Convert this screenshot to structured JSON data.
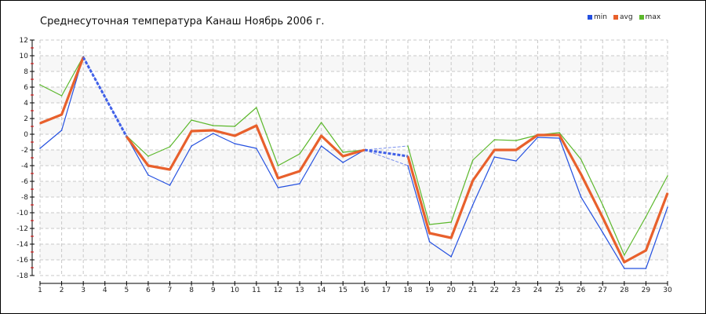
{
  "chart_data": {
    "type": "line",
    "title": "Среднесуточная температура Канаш  Ноябрь 2006 г.",
    "xlabel": "",
    "ylabel": "",
    "x": [
      1,
      2,
      3,
      4,
      5,
      6,
      7,
      8,
      9,
      10,
      11,
      12,
      13,
      14,
      15,
      16,
      17,
      18,
      19,
      20,
      21,
      22,
      23,
      24,
      25,
      26,
      27,
      28,
      29,
      30
    ],
    "xlim": [
      1,
      30
    ],
    "ylim": [
      -18,
      12
    ],
    "yticks": [
      12,
      10,
      8,
      6,
      4,
      2,
      0,
      -2,
      -4,
      -6,
      -8,
      -10,
      -12,
      -14,
      -16,
      -18
    ],
    "grid": true,
    "legend_position": "top-right",
    "series": [
      {
        "name": "min",
        "color": "#2450e0",
        "values": [
          -1.8,
          0.5,
          9.9,
          null,
          -0.3,
          -5.2,
          -6.5,
          -1.5,
          0.1,
          -1.2,
          -1.8,
          -6.8,
          -6.3,
          -1.5,
          -3.6,
          -2.0,
          null,
          -4.0,
          -13.7,
          -15.6,
          -9.0,
          -2.9,
          -3.4,
          -0.4,
          -0.5,
          -8.0,
          -12.5,
          -17.1,
          -17.1,
          -9.3
        ]
      },
      {
        "name": "avg",
        "color": "#e8602c",
        "values": [
          1.4,
          2.5,
          9.8,
          null,
          -0.3,
          -4.0,
          -4.5,
          0.4,
          0.5,
          -0.2,
          1.1,
          -5.6,
          -4.7,
          -0.2,
          -2.8,
          -2.0,
          null,
          -2.8,
          -12.6,
          -13.2,
          -5.9,
          -2.0,
          -2.0,
          -0.1,
          -0.1,
          -5.1,
          -10.6,
          -16.3,
          -14.8,
          -7.5
        ]
      },
      {
        "name": "max",
        "color": "#5cb82c",
        "values": [
          6.3,
          4.9,
          9.9,
          null,
          -0.2,
          -2.8,
          -1.6,
          1.8,
          1.1,
          1.0,
          3.4,
          -4.0,
          -2.5,
          1.5,
          -2.3,
          -2.0,
          null,
          -1.5,
          -11.5,
          -11.2,
          -3.3,
          -0.7,
          -0.8,
          -0.1,
          0.2,
          -3.2,
          -9.0,
          -15.4,
          -10.5,
          -5.3
        ]
      }
    ],
    "gap_color": "#4060e8"
  }
}
